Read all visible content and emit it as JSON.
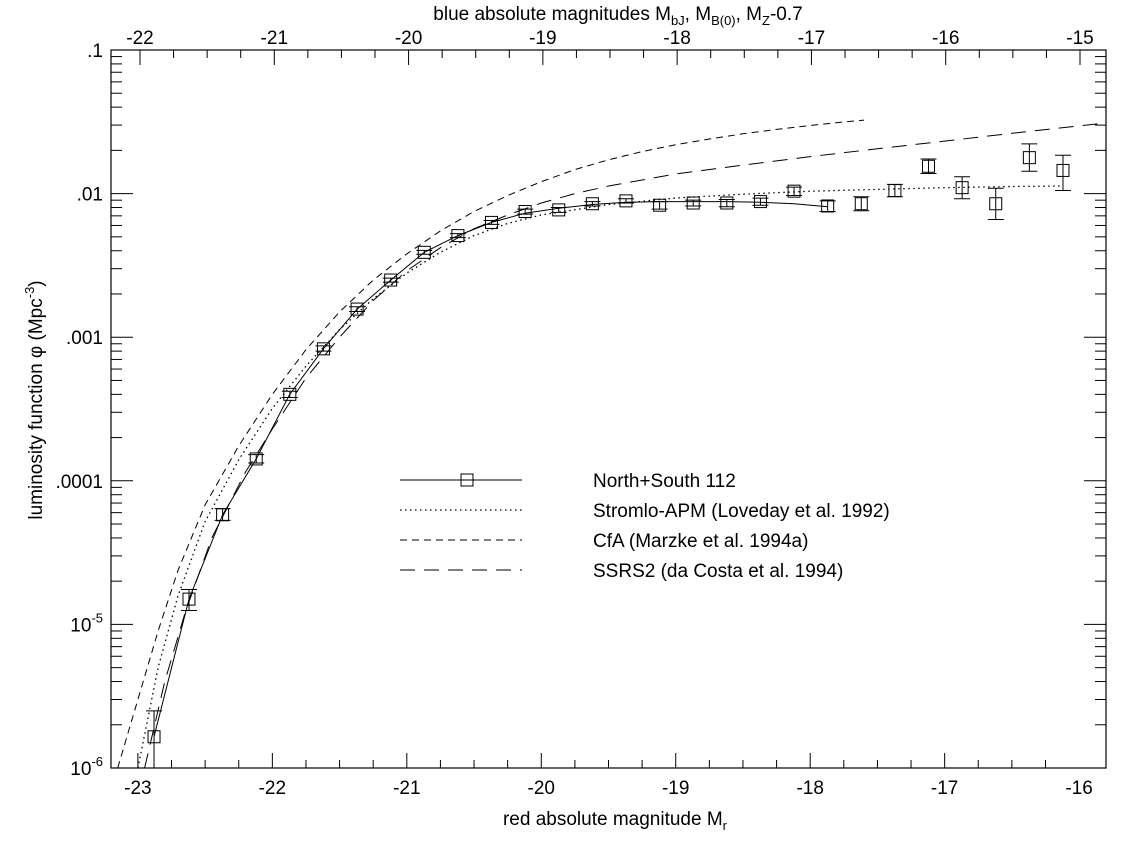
{
  "chart_data": {
    "type": "line",
    "title": "",
    "xlabel": "red absolute magnitude M",
    "xlabel_sub": "r",
    "ylabel": "luminosity function φ  (Mpc",
    "ylabel_sup": "-3",
    "ylabel_end": ")",
    "top_axis_label": {
      "p1": "blue absolute magnitudes M",
      "s1": "bJ",
      "p2": ", M",
      "s2": "B(0)",
      "p3": ", M",
      "s3": "Z",
      "p4": "-0.7"
    },
    "xlim": [
      -23.2,
      -15.8
    ],
    "ylim": [
      1e-06,
      0.1
    ],
    "yscale": "log",
    "top_xlim": [
      -22,
      -15
    ],
    "grid": false,
    "legend_position": "center",
    "x_ticks": [
      -23,
      -22,
      -21,
      -20,
      -19,
      -18,
      -17,
      -16
    ],
    "x_tick_labels": [
      "-23",
      "-22",
      "-21",
      "-20",
      "-19",
      "-18",
      "-17",
      "-16"
    ],
    "top_ticks": [
      -22,
      -21,
      -20,
      -19,
      -18,
      -17,
      -16,
      -15
    ],
    "top_tick_labels": [
      "-22",
      "-21",
      "-20",
      "-19",
      "-18",
      "-17",
      "-16",
      "-15"
    ],
    "y_ticks": [
      {
        "value": 0.1,
        "text": ".1"
      },
      {
        "value": 0.01,
        "text": ".01"
      },
      {
        "value": 0.001,
        "text": ".001"
      },
      {
        "value": 0.0001,
        "text": ".0001"
      },
      {
        "value": 1e-05,
        "base": "10",
        "exp": "-5"
      },
      {
        "value": 1e-06,
        "base": "10",
        "exp": "-6"
      }
    ],
    "series": [
      {
        "name": "North+South 112",
        "style": "solid-squares",
        "points": [
          {
            "x": -22.88,
            "y": 1.65e-06,
            "lo": 1e-06,
            "hi": 2.5e-06
          },
          {
            "x": -22.62,
            "y": 1.5e-05,
            "lo": 1.25e-05,
            "hi": 1.75e-05
          },
          {
            "x": -22.37,
            "y": 5.8e-05,
            "lo": 5.3e-05,
            "hi": 6.4e-05
          },
          {
            "x": -22.12,
            "y": 0.000142,
            "lo": 0.000133,
            "hi": 0.000152
          },
          {
            "x": -21.87,
            "y": 0.0004,
            "lo": 0.00038,
            "hi": 0.00042
          },
          {
            "x": -21.62,
            "y": 0.00083,
            "lo": 0.0008,
            "hi": 0.00087
          },
          {
            "x": -21.37,
            "y": 0.00157,
            "lo": 0.00151,
            "hi": 0.00163
          },
          {
            "x": -21.12,
            "y": 0.0025,
            "lo": 0.00242,
            "hi": 0.00258
          },
          {
            "x": -20.87,
            "y": 0.0039,
            "lo": 0.00378,
            "hi": 0.00402
          },
          {
            "x": -20.62,
            "y": 0.0051,
            "lo": 0.00494,
            "hi": 0.00526
          },
          {
            "x": -20.37,
            "y": 0.0063,
            "lo": 0.0061,
            "hi": 0.0065
          },
          {
            "x": -20.12,
            "y": 0.0075,
            "lo": 0.0072,
            "hi": 0.0078
          },
          {
            "x": -19.87,
            "y": 0.0077,
            "lo": 0.0074,
            "hi": 0.008
          },
          {
            "x": -19.62,
            "y": 0.0085,
            "lo": 0.0082,
            "hi": 0.0088
          },
          {
            "x": -19.37,
            "y": 0.0089,
            "lo": 0.0086,
            "hi": 0.0092
          },
          {
            "x": -19.12,
            "y": 0.0083,
            "lo": 0.0078,
            "hi": 0.0088
          },
          {
            "x": -18.87,
            "y": 0.0086,
            "lo": 0.0082,
            "hi": 0.009
          },
          {
            "x": -18.62,
            "y": 0.0086,
            "lo": 0.0081,
            "hi": 0.0091
          },
          {
            "x": -18.37,
            "y": 0.0088,
            "lo": 0.0083,
            "hi": 0.0093
          },
          {
            "x": -18.12,
            "y": 0.0104,
            "lo": 0.0097,
            "hi": 0.0111
          },
          {
            "x": -17.87,
            "y": 0.0082,
            "lo": 0.0075,
            "hi": 0.0089
          },
          {
            "x": -17.62,
            "y": 0.0085,
            "lo": 0.0076,
            "hi": 0.0095
          },
          {
            "x": -17.37,
            "y": 0.0105,
            "lo": 0.0095,
            "hi": 0.0116
          },
          {
            "x": -17.12,
            "y": 0.0155,
            "lo": 0.0138,
            "hi": 0.0174
          },
          {
            "x": -16.87,
            "y": 0.011,
            "lo": 0.0092,
            "hi": 0.0131
          },
          {
            "x": -16.62,
            "y": 0.0085,
            "lo": 0.0066,
            "hi": 0.0109
          },
          {
            "x": -16.37,
            "y": 0.0178,
            "lo": 0.0143,
            "hi": 0.0222
          },
          {
            "x": -16.12,
            "y": 0.0145,
            "lo": 0.0105,
            "hi": 0.0185
          }
        ],
        "line": [
          {
            "x": -22.88,
            "y": 1.65e-06
          },
          {
            "x": -22.62,
            "y": 1.5e-05
          },
          {
            "x": -22.37,
            "y": 5.8e-05
          },
          {
            "x": -22.12,
            "y": 0.000142
          },
          {
            "x": -21.87,
            "y": 0.0004
          },
          {
            "x": -21.62,
            "y": 0.00083
          },
          {
            "x": -21.37,
            "y": 0.00157
          },
          {
            "x": -21.12,
            "y": 0.0025
          },
          {
            "x": -20.87,
            "y": 0.0039
          },
          {
            "x": -20.62,
            "y": 0.0051
          },
          {
            "x": -20.37,
            "y": 0.0063
          },
          {
            "x": -20.12,
            "y": 0.0073
          },
          {
            "x": -19.87,
            "y": 0.0079
          },
          {
            "x": -19.62,
            "y": 0.0084
          },
          {
            "x": -19.37,
            "y": 0.0087
          },
          {
            "x": -19.12,
            "y": 0.0088
          },
          {
            "x": -18.87,
            "y": 0.0088
          },
          {
            "x": -18.62,
            "y": 0.0088
          },
          {
            "x": -18.37,
            "y": 0.0087
          },
          {
            "x": -18.12,
            "y": 0.0085
          },
          {
            "x": -17.87,
            "y": 0.0081
          }
        ]
      },
      {
        "name": "Stromlo-APM (Loveday et al. 1992)",
        "style": "dotted",
        "points": [
          {
            "x": -23.0,
            "y": 1e-06
          },
          {
            "x": -22.85,
            "y": 5e-06
          },
          {
            "x": -22.7,
            "y": 1.6e-05
          },
          {
            "x": -22.5,
            "y": 5.2e-05
          },
          {
            "x": -22.25,
            "y": 0.00014
          },
          {
            "x": -22.0,
            "y": 0.00032
          },
          {
            "x": -21.75,
            "y": 0.00063
          },
          {
            "x": -21.5,
            "y": 0.00113
          },
          {
            "x": -21.25,
            "y": 0.00185
          },
          {
            "x": -21.0,
            "y": 0.0028
          },
          {
            "x": -20.75,
            "y": 0.0039
          },
          {
            "x": -20.5,
            "y": 0.0051
          },
          {
            "x": -20.25,
            "y": 0.0062
          },
          {
            "x": -20.0,
            "y": 0.0071
          },
          {
            "x": -19.5,
            "y": 0.0084
          },
          {
            "x": -19.0,
            "y": 0.0093
          },
          {
            "x": -18.5,
            "y": 0.0099
          },
          {
            "x": -18.0,
            "y": 0.0104
          },
          {
            "x": -17.5,
            "y": 0.0107
          },
          {
            "x": -17.0,
            "y": 0.011
          },
          {
            "x": -16.5,
            "y": 0.0112
          },
          {
            "x": -16.12,
            "y": 0.0113
          }
        ]
      },
      {
        "name": "CfA (Marzke et al. 1994a)",
        "style": "short-dash",
        "points": [
          {
            "x": -23.15,
            "y": 1e-06
          },
          {
            "x": -23.0,
            "y": 3e-06
          },
          {
            "x": -22.85,
            "y": 9e-06
          },
          {
            "x": -22.7,
            "y": 2.4e-05
          },
          {
            "x": -22.5,
            "y": 6.8e-05
          },
          {
            "x": -22.25,
            "y": 0.000175
          },
          {
            "x": -22.0,
            "y": 0.0004
          },
          {
            "x": -21.75,
            "y": 0.00082
          },
          {
            "x": -21.5,
            "y": 0.0015
          },
          {
            "x": -21.25,
            "y": 0.0025
          },
          {
            "x": -21.0,
            "y": 0.0038
          },
          {
            "x": -20.75,
            "y": 0.0055
          },
          {
            "x": -20.5,
            "y": 0.0075
          },
          {
            "x": -20.25,
            "y": 0.0097
          },
          {
            "x": -20.0,
            "y": 0.0121
          },
          {
            "x": -19.75,
            "y": 0.0147
          },
          {
            "x": -19.5,
            "y": 0.0172
          },
          {
            "x": -19.25,
            "y": 0.0196
          },
          {
            "x": -19.0,
            "y": 0.0219
          },
          {
            "x": -18.75,
            "y": 0.024
          },
          {
            "x": -18.5,
            "y": 0.0261
          },
          {
            "x": -18.25,
            "y": 0.028
          },
          {
            "x": -18.0,
            "y": 0.0298
          },
          {
            "x": -17.75,
            "y": 0.0315
          },
          {
            "x": -17.6,
            "y": 0.0325
          }
        ]
      },
      {
        "name": "SSRS2 (da Costa et al. 1994)",
        "style": "long-dash",
        "points": [
          {
            "x": -22.95,
            "y": 1e-06
          },
          {
            "x": -22.8,
            "y": 4e-06
          },
          {
            "x": -22.65,
            "y": 1.2e-05
          },
          {
            "x": -22.45,
            "y": 4e-05
          },
          {
            "x": -22.2,
            "y": 0.000115
          },
          {
            "x": -22.0,
            "y": 0.00023
          },
          {
            "x": -21.75,
            "y": 0.00052
          },
          {
            "x": -21.5,
            "y": 0.001
          },
          {
            "x": -21.25,
            "y": 0.0018
          },
          {
            "x": -21.0,
            "y": 0.0029
          },
          {
            "x": -20.75,
            "y": 0.0042
          },
          {
            "x": -20.5,
            "y": 0.0057
          },
          {
            "x": -20.25,
            "y": 0.0071
          },
          {
            "x": -20.0,
            "y": 0.0086
          },
          {
            "x": -19.75,
            "y": 0.01
          },
          {
            "x": -19.5,
            "y": 0.0113
          },
          {
            "x": -19.0,
            "y": 0.0137
          },
          {
            "x": -18.5,
            "y": 0.0158
          },
          {
            "x": -18.0,
            "y": 0.0181
          },
          {
            "x": -17.5,
            "y": 0.0205
          },
          {
            "x": -17.0,
            "y": 0.0232
          },
          {
            "x": -16.5,
            "y": 0.0263
          },
          {
            "x": -16.0,
            "y": 0.0296
          },
          {
            "x": -15.8,
            "y": 0.031
          }
        ]
      }
    ]
  }
}
